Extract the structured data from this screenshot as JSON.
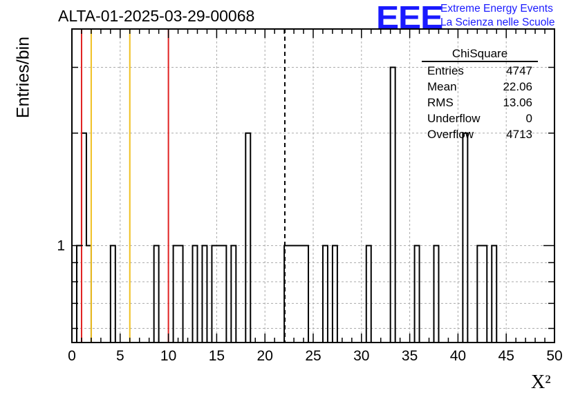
{
  "chart_data": {
    "type": "bar",
    "title": "ALTA-01-2025-03-29-00068",
    "xlabel": "X²",
    "ylabel": "Entries/bin",
    "xlim": [
      0,
      50
    ],
    "ylim": [
      0.55,
      3.8
    ],
    "yscale": "log",
    "grid": true,
    "bin_width": 0.5,
    "x_ticks": [
      "0",
      "5",
      "10",
      "15",
      "20",
      "25",
      "30",
      "35",
      "40",
      "45",
      "50"
    ],
    "y_tick_labels": [
      "1"
    ],
    "bins": [
      {
        "x": 0.5,
        "y": 1
      },
      {
        "x": 1.0,
        "y": 2
      },
      {
        "x": 1.5,
        "y": 1
      },
      {
        "x": 4.0,
        "y": 1
      },
      {
        "x": 8.5,
        "y": 1
      },
      {
        "x": 10.5,
        "y": 1
      },
      {
        "x": 11.0,
        "y": 1
      },
      {
        "x": 12.5,
        "y": 1
      },
      {
        "x": 13.5,
        "y": 1
      },
      {
        "x": 14.5,
        "y": 1
      },
      {
        "x": 15.0,
        "y": 1
      },
      {
        "x": 15.5,
        "y": 1
      },
      {
        "x": 16.5,
        "y": 1
      },
      {
        "x": 18.0,
        "y": 2
      },
      {
        "x": 22.0,
        "y": 1
      },
      {
        "x": 22.5,
        "y": 1
      },
      {
        "x": 23.0,
        "y": 1
      },
      {
        "x": 23.5,
        "y": 1
      },
      {
        "x": 24.0,
        "y": 1
      },
      {
        "x": 26.0,
        "y": 1
      },
      {
        "x": 27.0,
        "y": 1
      },
      {
        "x": 30.5,
        "y": 1
      },
      {
        "x": 33.0,
        "y": 3
      },
      {
        "x": 35.5,
        "y": 1
      },
      {
        "x": 37.5,
        "y": 1
      },
      {
        "x": 40.5,
        "y": 2
      },
      {
        "x": 42.0,
        "y": 1
      },
      {
        "x": 42.5,
        "y": 1
      },
      {
        "x": 43.5,
        "y": 1
      }
    ],
    "vertical_lines": [
      {
        "x": 1.0,
        "color": "#e02020",
        "style": "solid"
      },
      {
        "x": 2.0,
        "color": "#f0c020",
        "style": "solid"
      },
      {
        "x": 6.0,
        "color": "#f0c020",
        "style": "solid"
      },
      {
        "x": 10.0,
        "color": "#e02020",
        "style": "solid"
      },
      {
        "x": 22.06,
        "color": "#000000",
        "style": "dashed"
      }
    ]
  },
  "stats_box": {
    "name": "ChiSquare",
    "rows": [
      {
        "label": "Entries",
        "value": "4747"
      },
      {
        "label": "Mean",
        "value": "22.06"
      },
      {
        "label": "RMS",
        "value": "13.06"
      },
      {
        "label": "Underflow",
        "value": "0"
      },
      {
        "label": "Overflow",
        "value": "4713"
      }
    ]
  },
  "logo": {
    "mark": "EEE",
    "line1": "Extreme Energy Events",
    "line2": "La Scienza nelle Scuole",
    "color": "#1a1aff"
  }
}
